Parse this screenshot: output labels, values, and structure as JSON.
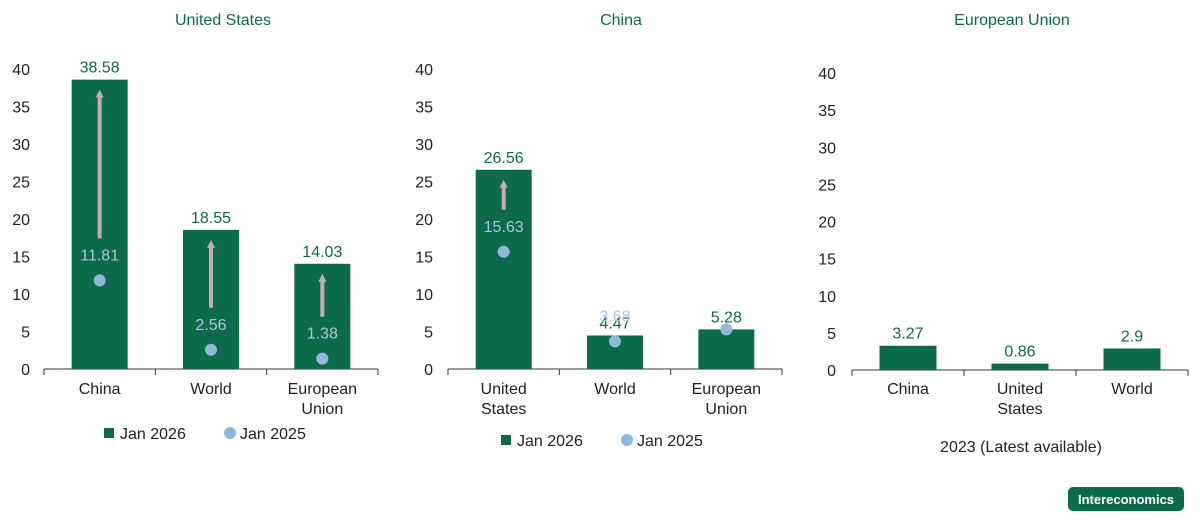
{
  "colors": {
    "bar": "#0b6b4b",
    "dot": "#92b8d9",
    "dot_label": "#a9c4e0",
    "arrow": "#c9a9b8",
    "title": "#0b6b4b",
    "axis_text": "#222222"
  },
  "brand": "Intereconomics",
  "chart_data": [
    {
      "type": "bar",
      "title": "United States",
      "categories": [
        "China",
        "World",
        "European Union"
      ],
      "category_lines": [
        [
          "China"
        ],
        [
          "World"
        ],
        [
          "European",
          "Union"
        ]
      ],
      "series": [
        {
          "name": "Jan 2026",
          "kind": "bar",
          "values": [
            38.58,
            18.55,
            14.03
          ]
        },
        {
          "name": "Jan 2025",
          "kind": "dot",
          "values": [
            11.81,
            2.56,
            1.38
          ]
        }
      ],
      "value_labels": {
        "bar": [
          "38.58",
          "18.55",
          "14.03"
        ],
        "dot": [
          "11.81",
          "2.56",
          "1.38"
        ]
      },
      "arrows": true,
      "ylim": [
        0,
        40
      ],
      "yticks": [
        0,
        5,
        10,
        15,
        20,
        25,
        30,
        35,
        40
      ],
      "legend": [
        "Jan 2026",
        "Jan 2025"
      ],
      "legend_position": "bottom",
      "note": ""
    },
    {
      "type": "bar",
      "title": "China",
      "categories": [
        "United States",
        "World",
        "European Union"
      ],
      "category_lines": [
        [
          "United",
          "States"
        ],
        [
          "World"
        ],
        [
          "European",
          "Union"
        ]
      ],
      "series": [
        {
          "name": "Jan 2026",
          "kind": "bar",
          "values": [
            26.56,
            4.47,
            5.28
          ]
        },
        {
          "name": "Jan 2025",
          "kind": "dot",
          "values": [
            15.63,
            3.68,
            5.28
          ]
        }
      ],
      "value_labels": {
        "bar": [
          "26.56",
          "4.47",
          "5.28"
        ],
        "dot": [
          "15.63",
          "3.68",
          ""
        ]
      },
      "arrows": true,
      "ylim": [
        0,
        40
      ],
      "yticks": [
        0,
        5,
        10,
        15,
        20,
        25,
        30,
        35,
        40
      ],
      "legend": [
        "Jan 2026",
        "Jan 2025"
      ],
      "legend_position": "bottom",
      "note": ""
    },
    {
      "type": "bar",
      "title": "European Union",
      "categories": [
        "China",
        "United States",
        "World"
      ],
      "category_lines": [
        [
          "China"
        ],
        [
          "United",
          "States"
        ],
        [
          "World"
        ]
      ],
      "series": [
        {
          "name": "2023",
          "kind": "bar",
          "values": [
            3.27,
            0.86,
            2.9
          ]
        }
      ],
      "value_labels": {
        "bar": [
          "3.27",
          "0.86",
          "2.9"
        ]
      },
      "arrows": false,
      "ylim": [
        0,
        40
      ],
      "yticks": [
        0,
        5,
        10,
        15,
        20,
        25,
        30,
        35,
        40
      ],
      "legend": [],
      "legend_position": "bottom",
      "note": "2023 (Latest available)"
    }
  ]
}
